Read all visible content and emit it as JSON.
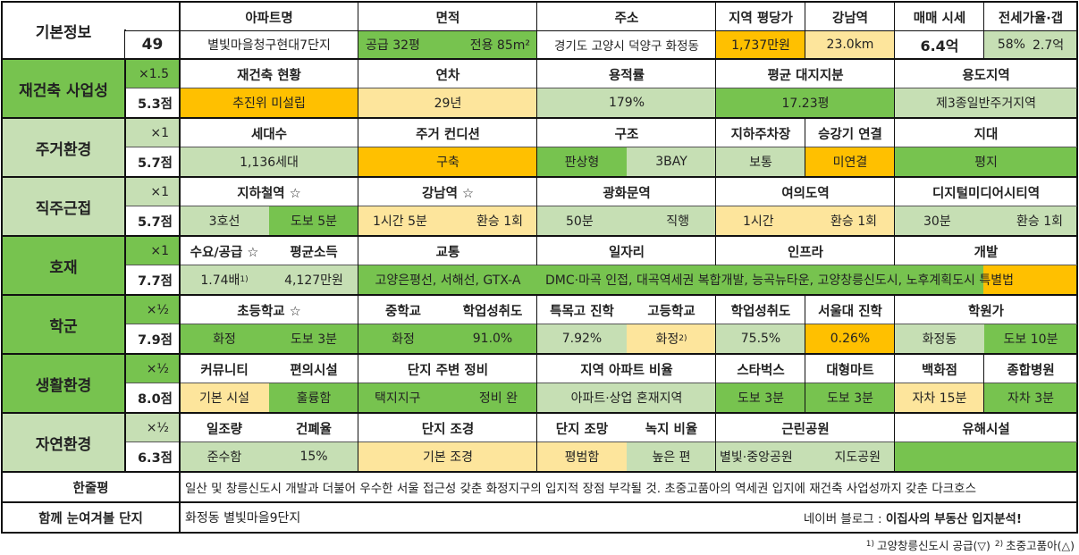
{
  "colors": {
    "light_green": "#c6dfb4",
    "green": "#77c34f",
    "light_yellow": "#fde59c",
    "orange": "#ffc000"
  },
  "basic": {
    "label": "기본정보",
    "number": "49",
    "h_apt": "아파트명",
    "apt": "별빛마을청구현대7단지",
    "h_area": "면적",
    "area_supply": "공급 32평",
    "area_exclusive": "전용 85m²",
    "h_addr": "주소",
    "addr": "경기도 고양시 덕양구 화정동",
    "h_pyeong": "지역 평당가",
    "pyeong": "1,737만원",
    "h_gangnam": "강남역",
    "gangnam": "23.0km",
    "h_price": "매매 시세",
    "price": "6.4억",
    "h_jeonse": "전세가율·갭",
    "jeonse_rate": "58%",
    "gap": "2.7억"
  },
  "rebuild": {
    "label": "재건축 사업성",
    "mult": "×1.5",
    "score": "5.3점",
    "h1": "재건축 현황",
    "v1": "추진위 미설립",
    "h2": "연차",
    "v2": "29년",
    "h3": "용적률",
    "v3": "179%",
    "h4": "평균 대지지분",
    "v4": "17.23평",
    "h5": "용도지역",
    "v5": "제3종일반주거지역"
  },
  "living": {
    "label": "주거환경",
    "mult": "×1",
    "score": "5.7점",
    "h_households": "세대수",
    "households": "1,136세대",
    "h_condition": "주거 컨디션",
    "condition": "구축",
    "h_structure": "구조",
    "structure_a": "판상형",
    "structure_b": "3BAY",
    "h_parking": "지하주차장",
    "parking": "보통",
    "h_elevator": "승강기 연결",
    "elevator": "미연결",
    "h_terrain": "지대",
    "terrain": "평지"
  },
  "commute": {
    "label": "직주근접",
    "mult": "×1",
    "score": "5.7점",
    "h_subway": "지하철역 ☆",
    "subway_line": "3호선",
    "subway_walk": "도보 5분",
    "h_gangnam": "강남역 ☆",
    "gangnam_time": "1시간 5분",
    "gangnam_transfer": "환승 1회",
    "h_gwanghwamun": "광화문역",
    "gwanghwamun_time": "50분",
    "gwanghwamun_transfer": "직행",
    "h_yeouido": "여의도역",
    "yeouido_time": "1시간",
    "yeouido_transfer": "환승 1회",
    "h_dmc": "디지털미디어시티역",
    "dmc_time": "30분",
    "dmc_transfer": "환승 1회"
  },
  "development": {
    "label": "호재",
    "mult": "×1",
    "score": "7.7점",
    "h_supply": "수요/공급 ☆",
    "supply": "1.74배",
    "supply_note": "1)",
    "h_income": "평균소득",
    "income": "4,127만원",
    "h_traffic": "교통",
    "traffic": "고양은평선, 서해선, GTX-A",
    "h_jobs": "일자리",
    "h_infra": "인프라",
    "h_dev": "개발",
    "development_text": "DMC·마곡 인접, 대곡역세권 복합개발, 능곡뉴타운, 고양창릉신도시, 노후계획도시 특별법"
  },
  "school": {
    "label": "학군",
    "mult": "×½",
    "score": "7.9점",
    "h_elem": "초등학교 ☆",
    "elem": "화정",
    "elem_walk": "도보 3분",
    "h_middle": "중학교",
    "middle": "화정",
    "h_middle_rate": "학업성취도",
    "middle_rate": "91.0%",
    "h_special": "특목고 진학",
    "special": "7.92%",
    "h_high": "고등학교",
    "high": "화정",
    "high_note": "2)",
    "h_high_rate": "학업성취도",
    "high_rate": "75.5%",
    "h_snu": "서울대 진학",
    "snu": "0.26%",
    "h_academy": "학원가",
    "academy": "화정동",
    "academy_walk": "도보 10분"
  },
  "life": {
    "label": "생활환경",
    "mult": "×½",
    "score": "8.0점",
    "h_community": "커뮤니티",
    "community": "기본 시설",
    "h_convenience": "편의시설",
    "convenience": "훌륭함",
    "h_surround": "단지 주변 정비",
    "surround_a": "택지지구",
    "surround_b": "정비 완",
    "h_ratio": "지역 아파트 비율",
    "ratio": "아파트·상업 혼재지역",
    "h_starbucks": "스타벅스",
    "starbucks": "도보 3분",
    "h_mart": "대형마트",
    "mart": "도보 3분",
    "h_dept": "백화점",
    "dept": "자차 15분",
    "h_hospital": "종합병원",
    "hospital": "자차 3분"
  },
  "nature": {
    "label": "자연환경",
    "mult": "×½",
    "score": "6.3점",
    "h_sun": "일조량",
    "sun": "준수함",
    "h_coverage": "건폐율",
    "coverage": "15%",
    "h_landscape": "단지 조경",
    "landscape": "기본 조경",
    "h_view": "단지 조망",
    "view": "평범함",
    "h_green": "녹지 비율",
    "green": "높은 편",
    "h_park": "근린공원",
    "park_a": "별빛·중앙공원",
    "park_b": "지도공원",
    "h_harmful": "유해시설",
    "harmful": ""
  },
  "summary": {
    "label": "한줄평",
    "text": "일산 및 창릉신도시 개발과 더불어 우수한 서울 접근성 갖춘 화정지구의 입지적 장점 부각될 것. 초중고품아의 역세권 입지에 재건축 사업성까지 갖춘 다크호스"
  },
  "related": {
    "label": "함께 눈여겨볼 단지",
    "value": "화정동 별빛마을9단지",
    "blog_prefix": "네이버 블로그 : ",
    "blog_name": "이집사의 부동산 입지분석!"
  },
  "footnote": {
    "n1": "1)",
    "t1": "고양창릉신도시 공급(▽)",
    "n2": "2)",
    "t2": "초중고품아(△)"
  }
}
